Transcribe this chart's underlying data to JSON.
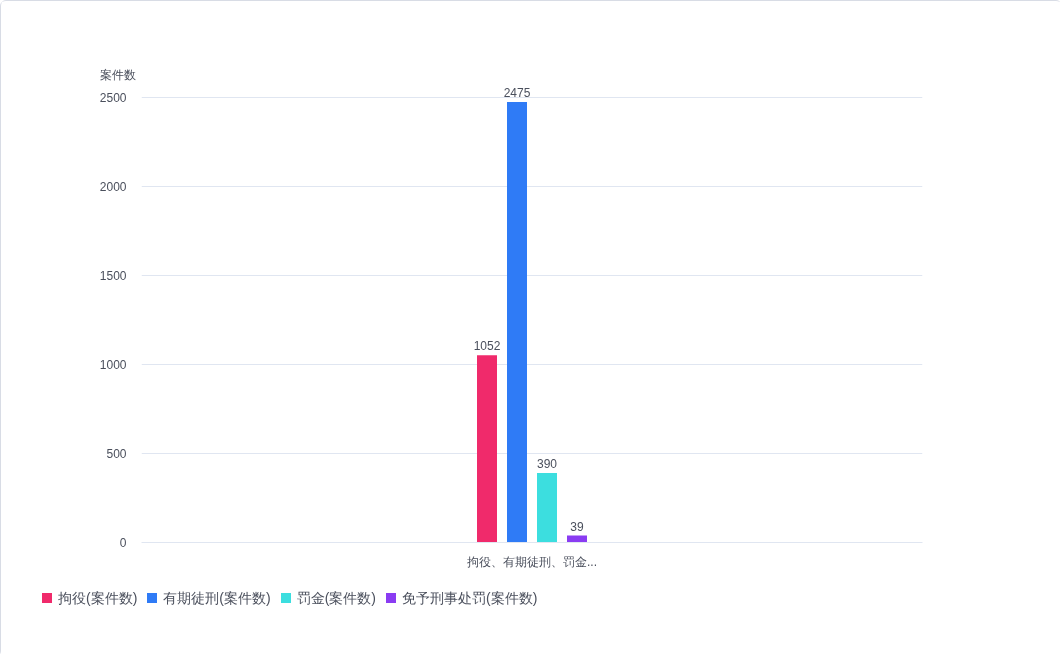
{
  "chart_data": {
    "type": "bar",
    "ylabel": "案件数",
    "categories": [
      "拘役、有期徒刑、罚金..."
    ],
    "series": [
      {
        "name": "拘役(案件数)",
        "color": "#f02a6b",
        "values": [
          1052
        ]
      },
      {
        "name": "有期徒刑(案件数)",
        "color": "#2f7bf6",
        "values": [
          2475
        ]
      },
      {
        "name": "罚金(案件数)",
        "color": "#3cdedf",
        "values": [
          390
        ]
      },
      {
        "name": "免予刑事处罚(案件数)",
        "color": "#8a3cf2",
        "values": [
          39
        ]
      }
    ],
    "ylim": [
      0,
      2500
    ],
    "yticks": [
      0,
      500,
      1000,
      1500,
      2000,
      2500
    ],
    "grid": "y",
    "legend": "bottom left",
    "data_labels": true
  }
}
